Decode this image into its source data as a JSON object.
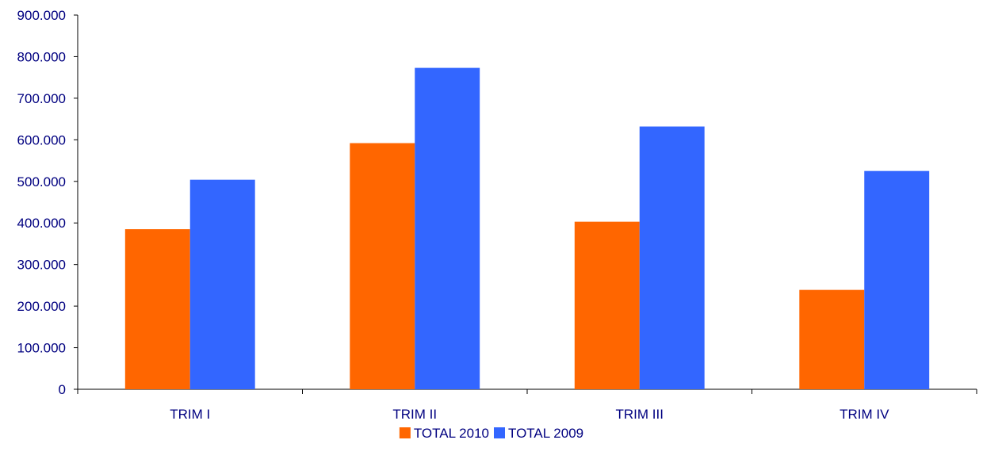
{
  "chart_data": {
    "type": "bar",
    "title": "",
    "xlabel": "",
    "ylabel": "",
    "categories": [
      "TRIM I",
      "TRIM II",
      "TRIM III",
      "TRIM IV"
    ],
    "series": [
      {
        "name": "TOTAL 2010",
        "color": "#ff6600",
        "values": [
          385000,
          592000,
          403000,
          239000
        ]
      },
      {
        "name": "TOTAL 2009",
        "color": "#3366ff",
        "values": [
          504000,
          773000,
          632000,
          525000
        ]
      }
    ],
    "ylim": [
      0,
      900000
    ],
    "yticks": [
      0,
      100000,
      200000,
      300000,
      400000,
      500000,
      600000,
      700000,
      800000,
      900000
    ],
    "ytick_labels": [
      "0",
      "100.000",
      "200.000",
      "300.000",
      "400.000",
      "500.000",
      "600.000",
      "700.000",
      "800.000",
      "900.000"
    ],
    "grid": false,
    "legend_position": "bottom",
    "colors": {
      "axis": "#000000",
      "tick_text": "#000080"
    }
  }
}
